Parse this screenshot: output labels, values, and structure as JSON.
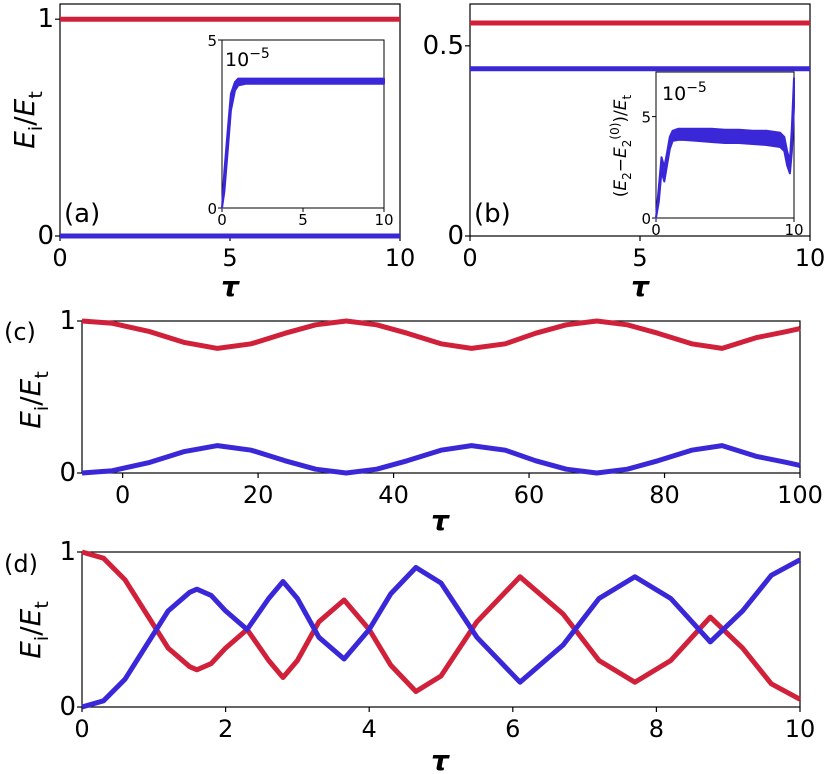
{
  "colors": {
    "red": "#d0203a",
    "blue": "#3a28d8"
  },
  "chart_data": [
    {
      "id": "a",
      "type": "line",
      "panel_label": "(a)",
      "xlabel": "τ",
      "ylabel": "E_i/E_t",
      "xlim": [
        0,
        10
      ],
      "ylim": [
        0,
        1.07
      ],
      "xticks": [
        0,
        5,
        10
      ],
      "yticks": [
        0,
        1
      ],
      "series": [
        {
          "color": "red",
          "x": [
            0,
            10
          ],
          "y": [
            1,
            1
          ]
        },
        {
          "color": "blue",
          "x": [
            0,
            10
          ],
          "y": [
            0,
            0
          ]
        }
      ],
      "inset": {
        "ylim": [
          0,
          5
        ],
        "xlim": [
          0,
          10
        ],
        "xticks": [
          0,
          5,
          10
        ],
        "yticks": [
          0,
          5
        ],
        "scale_label": "10^-5",
        "band": {
          "x": [
            0,
            0.15,
            0.35,
            0.55,
            0.8,
            1.0,
            1.5,
            2,
            3,
            4,
            5,
            6,
            7,
            8,
            9,
            10
          ],
          "upper": [
            0,
            1.1,
            2.3,
            3.4,
            3.75,
            3.85,
            3.85,
            3.85,
            3.85,
            3.85,
            3.85,
            3.85,
            3.85,
            3.85,
            3.85,
            3.85
          ],
          "lower": [
            0,
            0.5,
            1.7,
            2.9,
            3.5,
            3.65,
            3.7,
            3.7,
            3.7,
            3.7,
            3.7,
            3.7,
            3.7,
            3.7,
            3.7,
            3.7
          ]
        }
      }
    },
    {
      "id": "b",
      "type": "line",
      "panel_label": "(b)",
      "xlabel": "τ",
      "ylabel": "",
      "xlim": [
        0,
        10
      ],
      "ylim": [
        0,
        0.61
      ],
      "xticks": [
        0,
        5,
        10
      ],
      "yticks": [
        0,
        0.5
      ],
      "ytick_labels": [
        "0",
        "0.5"
      ],
      "series": [
        {
          "color": "red",
          "x": [
            0,
            10
          ],
          "y": [
            0.56,
            0.56
          ]
        },
        {
          "color": "blue",
          "x": [
            0,
            10
          ],
          "y": [
            0.44,
            0.44
          ]
        }
      ],
      "inset": {
        "ylabel": "(E_2-E_2^(0))/E_t",
        "ylim": [
          0,
          7.2
        ],
        "xlim": [
          0,
          10
        ],
        "xticks": [
          0,
          10
        ],
        "yticks": [
          0,
          5
        ],
        "scale_label": "10^-5",
        "band": {
          "x": [
            0,
            0.2,
            0.4,
            0.6,
            0.8,
            1.0,
            1.2,
            1.6,
            2,
            3,
            4,
            5,
            6,
            7,
            8,
            9,
            9.3,
            9.5,
            9.7,
            9.85,
            10
          ],
          "upper": [
            0,
            1.5,
            3.0,
            2.5,
            3.2,
            4.0,
            4.3,
            4.4,
            4.4,
            4.4,
            4.4,
            4.35,
            4.35,
            4.3,
            4.3,
            4.2,
            4.0,
            3.3,
            2.8,
            4.5,
            6.9
          ],
          "lower": [
            0,
            0.8,
            2.3,
            1.8,
            2.6,
            3.4,
            3.8,
            3.85,
            3.85,
            3.8,
            3.75,
            3.7,
            3.7,
            3.65,
            3.6,
            3.5,
            3.3,
            2.6,
            2.2,
            3.3,
            5.5
          ]
        }
      }
    },
    {
      "id": "c",
      "type": "line",
      "panel_label": "(c)",
      "xlabel": "τ",
      "ylabel": "E_i/E_t",
      "xlim": [
        -6,
        100
      ],
      "ylim": [
        0,
        1
      ],
      "xticks": [
        0,
        20,
        40,
        60,
        80,
        100
      ],
      "yticks": [
        0,
        1
      ],
      "series": [
        {
          "color": "red",
          "x": [
            -6,
            -1.5,
            4,
            9,
            14,
            19,
            24,
            28.5,
            33,
            37.5,
            42,
            47,
            51.5,
            56.5,
            61,
            65.5,
            70,
            74.5,
            79,
            84,
            88.5,
            93.5,
            98,
            100
          ],
          "y": [
            1.0,
            0.985,
            0.93,
            0.86,
            0.82,
            0.85,
            0.92,
            0.975,
            1.0,
            0.975,
            0.92,
            0.85,
            0.82,
            0.85,
            0.92,
            0.975,
            1.0,
            0.975,
            0.92,
            0.85,
            0.82,
            0.89,
            0.93,
            0.95
          ]
        },
        {
          "color": "blue",
          "x": [
            -6,
            -1.5,
            4,
            9,
            14,
            19,
            24,
            28.5,
            33,
            37.5,
            42,
            47,
            51.5,
            56.5,
            61,
            65.5,
            70,
            74.5,
            79,
            84,
            88.5,
            93.5,
            98,
            100
          ],
          "y": [
            0.0,
            0.015,
            0.07,
            0.14,
            0.18,
            0.15,
            0.08,
            0.025,
            0.0,
            0.025,
            0.08,
            0.15,
            0.18,
            0.15,
            0.08,
            0.025,
            0.0,
            0.025,
            0.08,
            0.15,
            0.18,
            0.11,
            0.07,
            0.05
          ]
        }
      ]
    },
    {
      "id": "d",
      "type": "line",
      "panel_label": "(d)",
      "xlabel": "τ",
      "ylabel": "E_i/E_t",
      "xlim": [
        0,
        10
      ],
      "ylim": [
        0,
        1
      ],
      "xticks": [
        0,
        2,
        4,
        6,
        8,
        10
      ],
      "yticks": [
        0,
        1
      ],
      "series": [
        {
          "color": "red",
          "x": [
            0,
            0.3,
            0.6,
            0.9,
            1.2,
            1.5,
            1.6,
            1.8,
            2.0,
            2.3,
            2.6,
            2.8,
            3.0,
            3.3,
            3.65,
            4.0,
            4.3,
            4.65,
            5.0,
            5.5,
            6.1,
            6.7,
            7.2,
            7.7,
            8.2,
            8.75,
            9.2,
            9.6,
            10.0
          ],
          "y": [
            1.0,
            0.96,
            0.82,
            0.6,
            0.38,
            0.26,
            0.24,
            0.28,
            0.38,
            0.5,
            0.3,
            0.19,
            0.3,
            0.55,
            0.69,
            0.5,
            0.27,
            0.1,
            0.2,
            0.55,
            0.84,
            0.6,
            0.3,
            0.16,
            0.3,
            0.58,
            0.38,
            0.15,
            0.05
          ]
        },
        {
          "color": "blue",
          "x": [
            0,
            0.3,
            0.6,
            0.9,
            1.2,
            1.5,
            1.6,
            1.8,
            2.0,
            2.3,
            2.6,
            2.8,
            3.0,
            3.3,
            3.65,
            4.0,
            4.3,
            4.65,
            5.0,
            5.5,
            6.1,
            6.7,
            7.2,
            7.7,
            8.2,
            8.75,
            9.2,
            9.6,
            10.0
          ],
          "y": [
            0.0,
            0.04,
            0.18,
            0.4,
            0.62,
            0.74,
            0.76,
            0.72,
            0.62,
            0.5,
            0.7,
            0.81,
            0.7,
            0.45,
            0.31,
            0.5,
            0.73,
            0.9,
            0.8,
            0.45,
            0.16,
            0.4,
            0.7,
            0.84,
            0.7,
            0.42,
            0.62,
            0.85,
            0.95
          ]
        }
      ]
    }
  ]
}
